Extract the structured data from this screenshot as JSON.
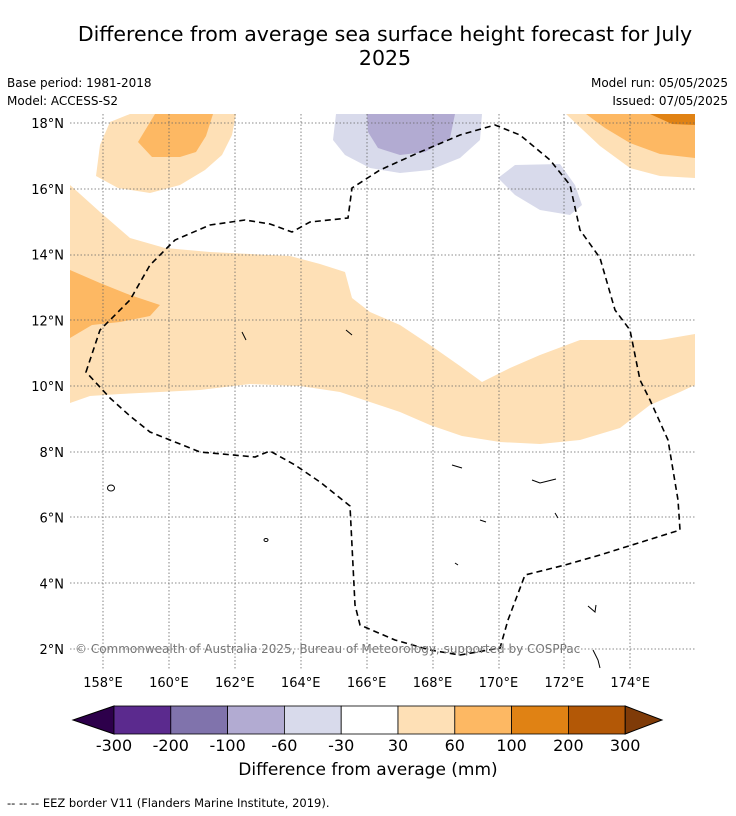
{
  "title": "Difference from average sea surface height forecast for July 2025",
  "meta_left": {
    "base_period": "Base period: 1981-2018",
    "model": "Model: ACCESS-S2"
  },
  "meta_right": {
    "model_run": "Model run: 05/05/2025",
    "issued": "Issued: 07/05/2025"
  },
  "map": {
    "lat_labels": [
      "18°N",
      "16°N",
      "14°N",
      "12°N",
      "10°N",
      "8°N",
      "6°N",
      "4°N",
      "2°N"
    ],
    "lon_labels": [
      "158°E",
      "160°E",
      "162°E",
      "164°E",
      "166°E",
      "168°E",
      "170°E",
      "172°E",
      "174°E"
    ],
    "copyright": "© Commonwealth of Australia 2025, Bureau of Meteorology, supported by COSPPac"
  },
  "colorbar": {
    "tick_labels": [
      "-300",
      "-200",
      "-100",
      "-60",
      "-30",
      "30",
      "60",
      "100",
      "200",
      "300"
    ],
    "colors": [
      "#2d004b",
      "#5b2a8e",
      "#8073ac",
      "#b2abd2",
      "#d8daeb",
      "#ffffff",
      "#fee0b6",
      "#fdb863",
      "#e08214",
      "#b35806",
      "#7f3b08"
    ],
    "label": "Difference from average (mm)"
  },
  "footer": "--  --  -- EEZ border V11 (Flanders Marine Institute, 2019)."
}
